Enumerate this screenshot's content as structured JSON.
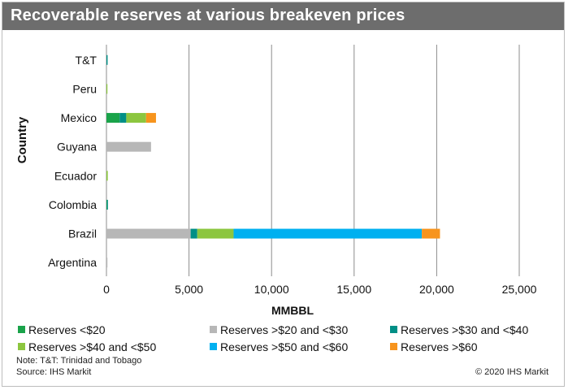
{
  "title": "Recoverable reserves at various breakeven prices",
  "note": "Note: T&T: Trinidad and Tobago",
  "source": "Source: IHS Markit",
  "copyright": "© 2020 IHS Markit",
  "chart_data": {
    "type": "bar",
    "orientation": "horizontal",
    "stacked": true,
    "categories": [
      "T&T",
      "Peru",
      "Mexico",
      "Guyana",
      "Ecuador",
      "Colombia",
      "Brazil",
      "Argentina"
    ],
    "xlabel": "MMBBL",
    "ylabel": "Country",
    "xlim": [
      0,
      25000
    ],
    "xticks": [
      "0",
      "5,000",
      "10,000",
      "15,000",
      "20,000",
      "25,000"
    ],
    "xtick_values": [
      0,
      5000,
      10000,
      15000,
      20000,
      25000
    ],
    "grid": "vertical",
    "legend_position": "bottom",
    "series": [
      {
        "name": "Reserves <$20",
        "color": "#1aa34a",
        "values": [
          0,
          0,
          800,
          0,
          0,
          30,
          0,
          0
        ]
      },
      {
        "name": "Reserves >$20 and <$30",
        "color": "#b7b7b7",
        "values": [
          0,
          0,
          0,
          2700,
          0,
          0,
          5100,
          60
        ]
      },
      {
        "name": "Reserves >$30 and <$40",
        "color": "#008f86",
        "values": [
          70,
          0,
          400,
          0,
          0,
          20,
          400,
          0
        ]
      },
      {
        "name": "Reserves >$40 and <$50",
        "color": "#8cc63f",
        "values": [
          0,
          40,
          1200,
          0,
          80,
          0,
          2200,
          0
        ]
      },
      {
        "name": "Reserves >$50 and <$60",
        "color": "#00b0f0",
        "values": [
          0,
          0,
          0,
          0,
          0,
          0,
          11400,
          0
        ]
      },
      {
        "name": "Reserves >$60",
        "color": "#f7941d",
        "values": [
          0,
          0,
          600,
          0,
          0,
          0,
          1100,
          0
        ]
      }
    ]
  }
}
